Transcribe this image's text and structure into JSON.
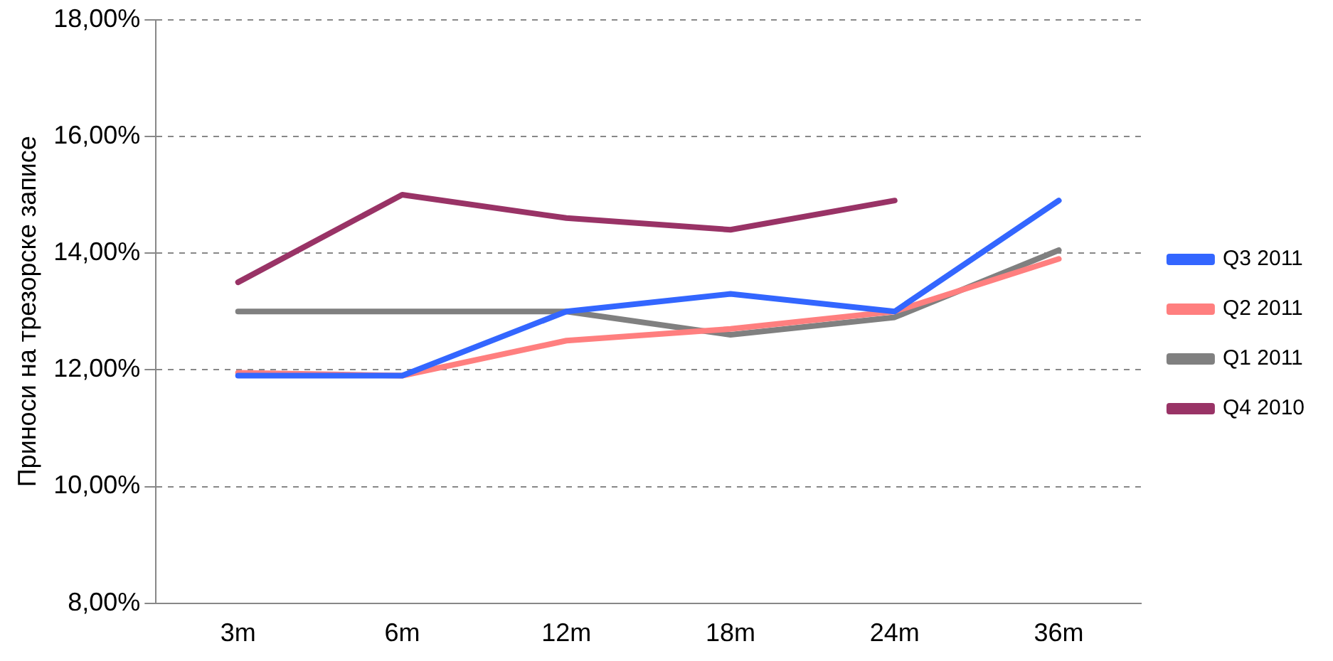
{
  "chart_data": {
    "type": "line",
    "ylabel": "Приноси на трезорске записе",
    "categories": [
      "3m",
      "6m",
      "12m",
      "18m",
      "24m",
      "36m"
    ],
    "series": [
      {
        "name": "Q3 2011",
        "color": "#3366ff",
        "values": [
          11.9,
          11.9,
          13.0,
          13.3,
          13.0,
          14.9
        ]
      },
      {
        "name": "Q2 2011",
        "color": "#ff7f7f",
        "values": [
          11.95,
          11.9,
          12.5,
          12.7,
          13.0,
          13.9
        ]
      },
      {
        "name": "Q1 2011",
        "color": "#808080",
        "values": [
          13.0,
          13.0,
          13.0,
          12.6,
          12.9,
          14.05
        ]
      },
      {
        "name": "Q4 2010",
        "color": "#993366",
        "values": [
          13.5,
          15.0,
          14.6,
          14.4,
          14.9,
          null
        ]
      }
    ],
    "ylim": [
      8,
      18
    ],
    "yticks": [
      {
        "value": 8,
        "label": "8,00%"
      },
      {
        "value": 10,
        "label": "10,00%"
      },
      {
        "value": 12,
        "label": "12,00%"
      },
      {
        "value": 14,
        "label": "14,00%"
      },
      {
        "value": 16,
        "label": "16,00%"
      },
      {
        "value": 18,
        "label": "18,00%"
      }
    ],
    "grid": "y",
    "legend": "right",
    "marker": "none",
    "line_style": "solid"
  }
}
